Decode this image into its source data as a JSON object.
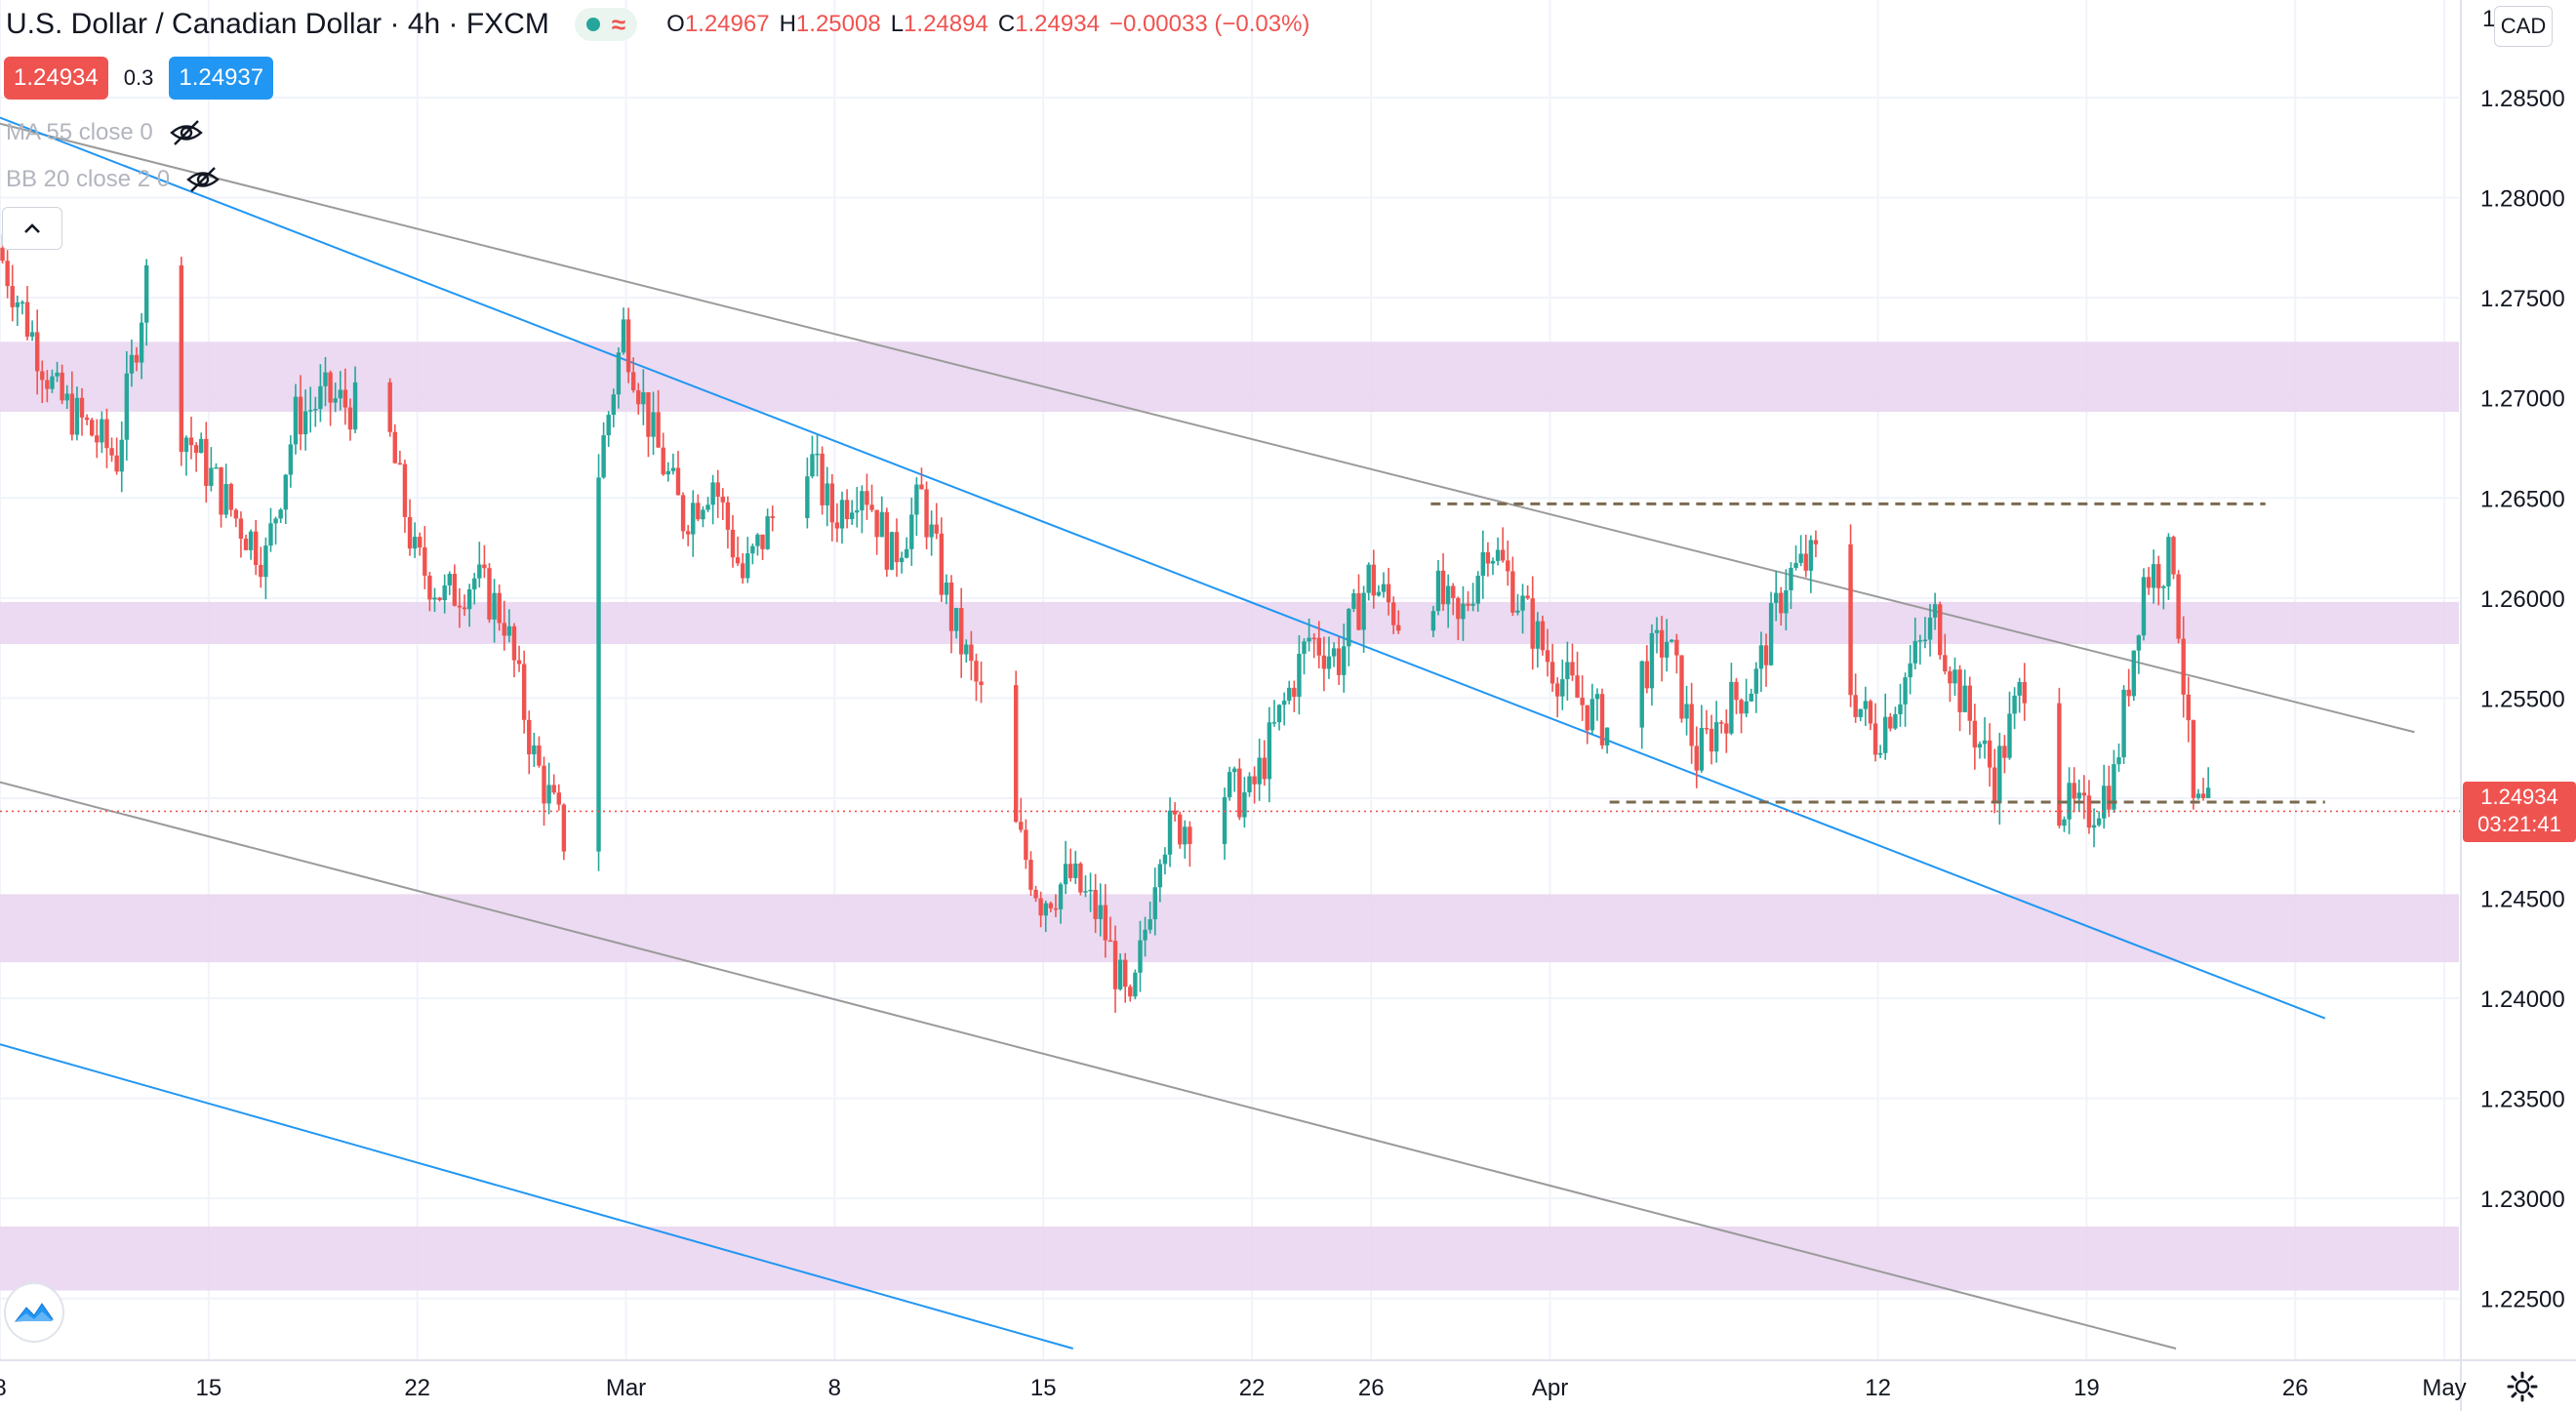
{
  "header": {
    "title": "U.S. Dollar / Canadian Dollar · 4h · FXCM",
    "ohlc": [
      {
        "key": "O",
        "value": "1.24967"
      },
      {
        "key": "H",
        "value": "1.25008"
      },
      {
        "key": "L",
        "value": "1.24894"
      },
      {
        "key": "C",
        "value": "1.24934"
      }
    ],
    "change": "−0.00033 (−0.03%)"
  },
  "trade": {
    "sell": "1.24934",
    "spread": "0.3",
    "buy": "1.24937"
  },
  "indicators": [
    "MA 55 close 0",
    "BB 20 close 2 0"
  ],
  "currency_button": "CAD",
  "last_price": {
    "value": "1.24934",
    "countdown": "03:21:41"
  },
  "colors": {
    "up": "#26a69a",
    "down": "#ef5350",
    "zone": "#e8d3ee",
    "trend_gray": "#9a9a9a",
    "trend_blue": "#2196f3",
    "level_dashed": "#7b6a4f",
    "grid": "#f0f3fa"
  },
  "chart_data": {
    "type": "candlestick",
    "symbol": "USDCAD",
    "timeframe": "4h",
    "ylim": [
      1.2225,
      1.289
    ],
    "y_ticks": [
      "1.22500",
      "1.23000",
      "1.23500",
      "1.24000",
      "1.24500",
      "1.25000",
      "1.25500",
      "1.26000",
      "1.26500",
      "1.27000",
      "1.27500",
      "1.28000",
      "1.28500"
    ],
    "x_ticks": [
      {
        "label": "8",
        "date": "2021-02-08"
      },
      {
        "label": "15",
        "date": "2021-02-15"
      },
      {
        "label": "22",
        "date": "2021-02-22"
      },
      {
        "label": "Mar",
        "date": "2021-03-01"
      },
      {
        "label": "8",
        "date": "2021-03-08"
      },
      {
        "label": "15",
        "date": "2021-03-15"
      },
      {
        "label": "22",
        "date": "2021-03-22"
      },
      {
        "label": "26",
        "date": "2021-03-26"
      },
      {
        "label": "Apr",
        "date": "2021-04-01"
      },
      {
        "label": "12",
        "date": "2021-04-12"
      },
      {
        "label": "19",
        "date": "2021-04-19"
      },
      {
        "label": "26",
        "date": "2021-04-26"
      },
      {
        "label": "May",
        "date": "2021-05-01"
      }
    ],
    "date_range": [
      "2021-02-08",
      "2021-05-01"
    ],
    "zones": [
      {
        "from": 1.2693,
        "to": 1.2728
      },
      {
        "from": 1.2577,
        "to": 1.2598
      },
      {
        "from": 1.2418,
        "to": 1.2452
      },
      {
        "from": 1.2254,
        "to": 1.2286
      }
    ],
    "trendlines": [
      {
        "color": "gray",
        "from": {
          "date": "2021-02-08",
          "price": 1.2837
        },
        "to": {
          "date": "2021-04-30",
          "price": 1.2533
        }
      },
      {
        "color": "gray",
        "from": {
          "date": "2021-02-08",
          "price": 1.2508
        },
        "to": {
          "date": "2021-04-22",
          "price": 1.2225
        }
      },
      {
        "color": "blue",
        "from": {
          "date": "2021-02-08",
          "price": 1.284
        },
        "to": {
          "date": "2021-04-27",
          "price": 1.239
        }
      },
      {
        "color": "blue",
        "from": {
          "date": "2021-02-08",
          "price": 1.2377
        },
        "to": {
          "date": "2021-03-16",
          "price": 1.2225
        }
      }
    ],
    "levels": [
      {
        "price": 1.2647,
        "from": "2021-03-28",
        "to": "2021-04-25",
        "style": "dashed"
      },
      {
        "price": 1.2498,
        "from": "2021-04-03",
        "to": "2021-04-27",
        "style": "dashed"
      }
    ],
    "last_price_line": 1.24934,
    "path": [
      {
        "date": "2021-02-08",
        "price": 1.2775
      },
      {
        "date": "2021-02-10",
        "price": 1.27
      },
      {
        "date": "2021-02-12",
        "price": 1.267
      },
      {
        "date": "2021-02-13",
        "price": 1.276
      },
      {
        "date": "2021-02-14",
        "price": 1.269
      },
      {
        "date": "2021-02-16",
        "price": 1.264
      },
      {
        "date": "2021-02-17",
        "price": 1.262
      },
      {
        "date": "2021-02-18",
        "price": 1.269
      },
      {
        "date": "2021-02-19",
        "price": 1.27
      },
      {
        "date": "2021-02-21",
        "price": 1.269
      },
      {
        "date": "2021-02-22",
        "price": 1.262
      },
      {
        "date": "2021-02-23",
        "price": 1.26
      },
      {
        "date": "2021-02-24",
        "price": 1.261
      },
      {
        "date": "2021-02-25",
        "price": 1.259
      },
      {
        "date": "2021-02-26",
        "price": 1.252
      },
      {
        "date": "2021-02-27",
        "price": 1.248
      },
      {
        "date": "2021-02-28",
        "price": 1.265
      },
      {
        "date": "2021-03-01",
        "price": 1.2735
      },
      {
        "date": "2021-03-02",
        "price": 1.268
      },
      {
        "date": "2021-03-03",
        "price": 1.264
      },
      {
        "date": "2021-03-04",
        "price": 1.266
      },
      {
        "date": "2021-03-05",
        "price": 1.261
      },
      {
        "date": "2021-03-06",
        "price": 1.264
      },
      {
        "date": "2021-03-07",
        "price": 1.268
      },
      {
        "date": "2021-03-08",
        "price": 1.264
      },
      {
        "date": "2021-03-09",
        "price": 1.266
      },
      {
        "date": "2021-03-10",
        "price": 1.262
      },
      {
        "date": "2021-03-11",
        "price": 1.265
      },
      {
        "date": "2021-03-12",
        "price": 1.259
      },
      {
        "date": "2021-03-13",
        "price": 1.255
      },
      {
        "date": "2021-03-14",
        "price": 1.249
      },
      {
        "date": "2021-03-15",
        "price": 1.245
      },
      {
        "date": "2021-03-16",
        "price": 1.246
      },
      {
        "date": "2021-03-17",
        "price": 1.244
      },
      {
        "date": "2021-03-18",
        "price": 1.239
      },
      {
        "date": "2021-03-19",
        "price": 1.248
      },
      {
        "date": "2021-03-20",
        "price": 1.249
      },
      {
        "date": "2021-03-21",
        "price": 1.2505
      },
      {
        "date": "2021-03-22",
        "price": 1.25
      },
      {
        "date": "2021-03-23",
        "price": 1.254
      },
      {
        "date": "2021-03-24",
        "price": 1.258
      },
      {
        "date": "2021-03-25",
        "price": 1.257
      },
      {
        "date": "2021-03-26",
        "price": 1.261
      },
      {
        "date": "2021-03-27",
        "price": 1.259
      },
      {
        "date": "2021-03-28",
        "price": 1.261
      },
      {
        "date": "2021-03-29",
        "price": 1.2585
      },
      {
        "date": "2021-03-30",
        "price": 1.263
      },
      {
        "date": "2021-03-31",
        "price": 1.26
      },
      {
        "date": "2021-04-01",
        "price": 1.257
      },
      {
        "date": "2021-04-02",
        "price": 1.255
      },
      {
        "date": "2021-04-03",
        "price": 1.2535
      },
      {
        "date": "2021-04-04",
        "price": 1.256
      },
      {
        "date": "2021-04-05",
        "price": 1.258
      },
      {
        "date": "2021-04-06",
        "price": 1.252
      },
      {
        "date": "2021-04-07",
        "price": 1.2545
      },
      {
        "date": "2021-04-08",
        "price": 1.256
      },
      {
        "date": "2021-04-09",
        "price": 1.261
      },
      {
        "date": "2021-04-10",
        "price": 1.262
      },
      {
        "date": "2021-04-11",
        "price": 1.256
      },
      {
        "date": "2021-04-12",
        "price": 1.253
      },
      {
        "date": "2021-04-13",
        "price": 1.256
      },
      {
        "date": "2021-04-14",
        "price": 1.259
      },
      {
        "date": "2021-04-15",
        "price": 1.2545
      },
      {
        "date": "2021-04-16",
        "price": 1.251
      },
      {
        "date": "2021-04-17",
        "price": 1.256
      },
      {
        "date": "2021-04-18",
        "price": 1.25
      },
      {
        "date": "2021-04-19",
        "price": 1.249
      },
      {
        "date": "2021-04-20",
        "price": 1.251
      },
      {
        "date": "2021-04-21",
        "price": 1.261
      },
      {
        "date": "2021-04-22",
        "price": 1.262
      },
      {
        "date": "2021-04-22T16",
        "price": 1.2495
      },
      {
        "date": "2021-04-23",
        "price": 1.2493
      }
    ]
  }
}
